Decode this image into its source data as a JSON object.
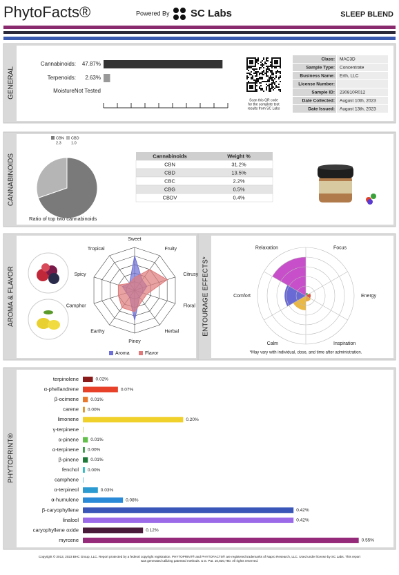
{
  "header": {
    "logo": "PhytoFacts®",
    "powered_by": "Powered By",
    "lab": "SC Labs",
    "product": "SLEEP BLEND"
  },
  "sections": {
    "general": "GENERAL",
    "cannabinoids": "CANNABINOIDS",
    "aroma": "AROMA & FLAVOR",
    "entourage": "ENTOURAGE EFFECTS*",
    "phytoprint": "PHYTOPRINT®"
  },
  "general": {
    "moisture": {
      "label": "Moisture:",
      "value": "Not Tested"
    },
    "qr_caption": [
      "Scan this QR code",
      "for the complete test",
      "results from SC Labs"
    ],
    "info": [
      [
        "Class:",
        "MAC3D"
      ],
      [
        "Sample Type:",
        "Concentrate"
      ],
      [
        "Business Name:",
        "Erth, LLC"
      ],
      [
        "License Number:"
      ],
      [
        "Sample ID:",
        "230810R012"
      ],
      [
        "Date Collected:",
        "August 10th, 2023"
      ],
      [
        "Date Issued:",
        "August 13th, 2023"
      ]
    ]
  },
  "cannabinoids": {
    "table": {
      "header": [
        "Cannabinoids",
        "Weight %"
      ],
      "rows": [
        [
          "CBN",
          "31.2%"
        ],
        [
          "CBD",
          "13.5%"
        ],
        [
          "CBC",
          "2.2%"
        ],
        [
          "CBG",
          "0.5%"
        ],
        [
          "CBDV",
          "0.4%"
        ]
      ]
    }
  },
  "entourage_note": "*May vary with individual, dose, and time after administration.",
  "footer": [
    "Copyright © 2013, 2023 BHC Group, LLC. Report protected by a federal copyright registration. PHYTOPRINT® and PHYTOFACTS® are registered trademarks of Napro Research, LLC. Used under license by SC Labs. This report",
    "was generated utilizing patented methods. U.S. Pat. 10,830,780. All rights reserved."
  ],
  "chart_data": [
    {
      "type": "bar",
      "categories": [
        "Cannabinoids:",
        "Terpenoids:"
      ],
      "values": [
        47.87,
        2.63
      ],
      "value_labels": [
        "47.87%",
        "2.63%"
      ],
      "colors": [
        "#333333",
        "#999999"
      ],
      "xlim": [
        0,
        50
      ]
    },
    {
      "type": "pie",
      "title": "Ratio of top two cannabinoids",
      "categories": [
        "CBN",
        "CBD"
      ],
      "values": [
        2.3,
        1.0
      ],
      "value_labels": [
        "2.3",
        "1.0"
      ],
      "colors": [
        "#7a7a7a",
        "#b5b5b5"
      ]
    },
    {
      "type": "radar",
      "categories": [
        "Sweet",
        "Fruity",
        "Citrusy",
        "Floral",
        "Herbal",
        "Piney",
        "Earthy",
        "Camphor",
        "Spicy",
        "Tropical"
      ],
      "series": [
        {
          "name": "Aroma",
          "color": "#6d6fd6",
          "values": [
            4,
            1.5,
            1.5,
            1,
            1,
            3.5,
            1,
            1,
            1.5,
            1
          ]
        },
        {
          "name": "Flavor",
          "color": "#e07a7a",
          "values": [
            1.5,
            3,
            4,
            1.5,
            1.5,
            2.5,
            2.5,
            2,
            2,
            1
          ]
        }
      ],
      "rlim": [
        0,
        5
      ],
      "rticks": [
        1,
        2,
        3,
        4,
        5
      ]
    },
    {
      "type": "polar-area",
      "categories": [
        "Relaxation",
        "Focus",
        "Energy",
        "Inspiration",
        "Calm",
        "Comfort"
      ],
      "values": [
        4,
        0.3,
        0.5,
        0.6,
        1.5,
        2.2
      ],
      "colors": [
        "#c23cc4",
        "#3aa03a",
        "#d8402a",
        "#e8a02a",
        "#e8b030",
        "#5a5ad0"
      ],
      "rlim": [
        0,
        5
      ],
      "rticks": [
        1,
        2,
        3,
        4,
        5
      ]
    },
    {
      "type": "bar",
      "categories": [
        "terpinolene",
        "α-phellandrene",
        "β-ocimene",
        "carene",
        "limonene",
        "γ-terpinene",
        "α-pinene",
        "α-terpinene",
        "β-pinene",
        "fenchol",
        "camphene",
        "α-terpineol",
        "α-humulene",
        "β-caryophyllene",
        "linalool",
        "caryophyllene oxide",
        "myrcene"
      ],
      "values": [
        0.02,
        0.07,
        0.01,
        0.004,
        0.2,
        0.001,
        0.01,
        0.004,
        0.01,
        0.004,
        0.001,
        0.03,
        0.08,
        0.42,
        0.42,
        0.12,
        0.55
      ],
      "value_labels": [
        "0.02%",
        "0.07%",
        "0.01%",
        "0.00%",
        "0.20%",
        null,
        "0.01%",
        "0.00%",
        "0.01%",
        "0.00%",
        null,
        "0.03%",
        "0.08%",
        "0.42%",
        "0.42%",
        "0.12%",
        "0.55%"
      ],
      "colors": [
        "#8b1a1a",
        "#e8412a",
        "#e8782a",
        "#e0962a",
        "#f0d02a",
        "#bcc84a",
        "#62c04a",
        "#3aa04a",
        "#1f7a3a",
        "#2ac0c8",
        "#3ab0d0",
        "#2a9ad0",
        "#2a8ad8",
        "#3a56b8",
        "#9a6ae8",
        "#4a1a3a",
        "#962a7a"
      ],
      "xlim": [
        0,
        0.6
      ]
    }
  ]
}
